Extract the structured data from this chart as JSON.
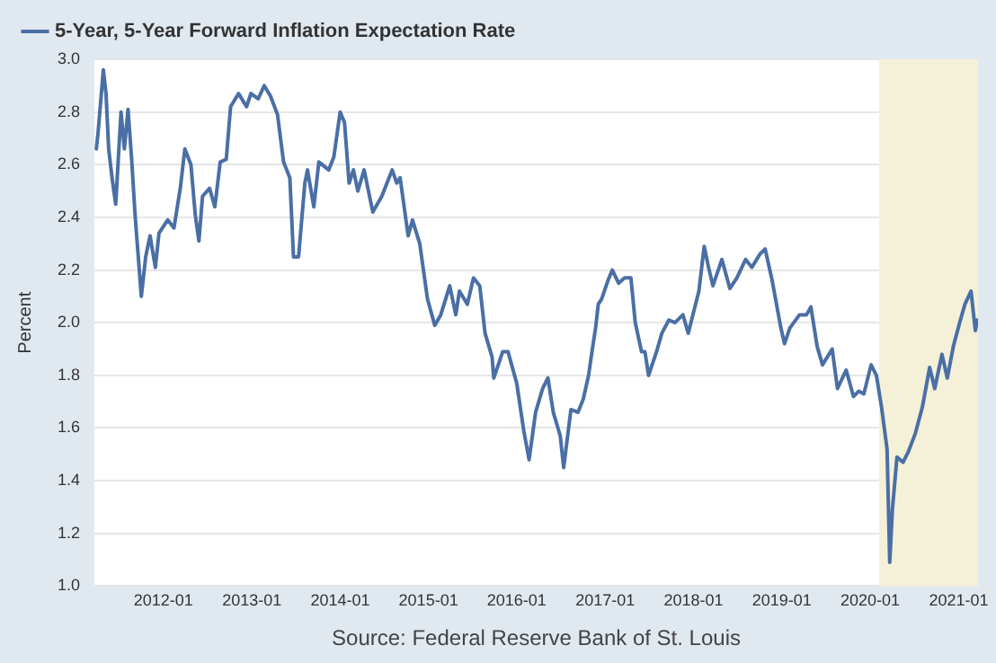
{
  "chart_data": {
    "type": "line",
    "ylabel": "Percent",
    "legend": "top left",
    "grid": "y",
    "marker": "none",
    "line_style": "solid",
    "annotations": [
      "Source: Federal Reserve Bank of St. Louis"
    ],
    "xlim": [
      "2011-03-22",
      "2021-03-22"
    ],
    "xticks": [
      "2012-01",
      "2013-01",
      "2014-01",
      "2015-01",
      "2016-01",
      "2017-01",
      "2018-01",
      "2019-01",
      "2020-01",
      "2021-01"
    ],
    "ylim": [
      1.0,
      3.0
    ],
    "yticks": [
      {
        "value": 1.0,
        "label": "1.0"
      },
      {
        "value": 1.2,
        "label": "1.2"
      },
      {
        "value": 1.4,
        "label": "1.4"
      },
      {
        "value": 1.6,
        "label": "1.6"
      },
      {
        "value": 1.8,
        "label": "1.8"
      },
      {
        "value": 2.0,
        "label": "2.0"
      },
      {
        "value": 2.2,
        "label": "2.2"
      },
      {
        "value": 2.4,
        "label": "2.4"
      },
      {
        "value": 2.6,
        "label": "2.6"
      },
      {
        "value": 2.8,
        "label": "2.8"
      },
      {
        "value": 3.0,
        "label": "3.0"
      }
    ],
    "bands": [
      {
        "axis": "x",
        "from": "2020-02-07",
        "to": "2021-03-22",
        "color": "#f4f1d8"
      }
    ],
    "series": [
      {
        "name": "5-Year, 5-Year Forward Inflation Expectation Rate",
        "color": "#4a6fa5",
        "x": [
          "2011-03-30",
          "2011-04-06",
          "2011-04-28",
          "2011-05-09",
          "2011-05-20",
          "2011-06-03",
          "2011-06-18",
          "2011-07-10",
          "2011-07-24",
          "2011-08-08",
          "2011-08-23",
          "2011-09-06",
          "2011-10-02",
          "2011-10-20",
          "2011-11-07",
          "2011-11-29",
          "2011-12-14",
          "2012-01-19",
          "2012-02-14",
          "2012-03-11",
          "2012-03-30",
          "2012-04-24",
          "2012-05-12",
          "2012-05-27",
          "2012-06-11",
          "2012-07-10",
          "2012-08-01",
          "2012-08-23",
          "2012-09-17",
          "2012-10-05",
          "2012-11-07",
          "2012-12-10",
          "2012-12-28",
          "2013-01-27",
          "2013-02-21",
          "2013-03-19",
          "2013-04-17",
          "2013-05-12",
          "2013-06-07",
          "2013-06-22",
          "2013-07-13",
          "2013-08-08",
          "2013-08-19",
          "2013-09-14",
          "2013-10-05",
          "2013-11-15",
          "2013-12-06",
          "2014-01-01",
          "2014-01-19",
          "2014-02-07",
          "2014-02-25",
          "2014-03-15",
          "2014-04-10",
          "2014-05-16",
          "2014-06-22",
          "2014-08-04",
          "2014-08-23",
          "2014-09-06",
          "2014-10-09",
          "2014-10-27",
          "2014-11-26",
          "2014-12-28",
          "2015-01-27",
          "2015-02-21",
          "2015-03-30",
          "2015-04-24",
          "2015-05-09",
          "2015-06-11",
          "2015-07-06",
          "2015-08-01",
          "2015-08-23",
          "2015-09-21",
          "2015-09-28",
          "2015-11-04",
          "2015-11-26",
          "2016-01-01",
          "2016-01-30",
          "2016-02-21",
          "2016-03-19",
          "2016-04-17",
          "2016-05-09",
          "2016-05-31",
          "2016-06-29",
          "2016-07-13",
          "2016-08-12",
          "2016-09-10",
          "2016-10-02",
          "2016-10-24",
          "2016-11-07",
          "2016-11-22",
          "2016-12-03",
          "2016-12-17",
          "2017-01-12",
          "2017-01-30",
          "2017-02-25",
          "2017-03-22",
          "2017-04-17",
          "2017-05-05",
          "2017-05-31",
          "2017-06-14",
          "2017-06-29",
          "2017-08-01",
          "2017-08-23",
          "2017-09-21",
          "2017-10-16",
          "2017-11-18",
          "2017-12-10",
          "2018-01-23",
          "2018-02-14",
          "2018-03-04",
          "2018-03-22",
          "2018-04-28",
          "2018-05-31",
          "2018-06-29",
          "2018-08-04",
          "2018-08-30",
          "2018-10-02",
          "2018-10-24",
          "2018-11-22",
          "2018-12-28",
          "2019-01-12",
          "2019-02-03",
          "2019-03-15",
          "2019-04-13",
          "2019-05-01",
          "2019-05-27",
          "2019-06-18",
          "2019-07-28",
          "2019-08-19",
          "2019-09-24",
          "2019-10-24",
          "2019-11-15",
          "2019-12-06",
          "2020-01-05",
          "2020-01-27",
          "2020-02-17",
          "2020-03-11",
          "2020-03-22",
          "2020-04-02",
          "2020-04-21",
          "2020-05-16",
          "2020-06-07",
          "2020-07-06",
          "2020-08-04",
          "2020-09-03",
          "2020-09-24",
          "2020-10-24",
          "2020-11-15",
          "2020-12-10",
          "2021-01-05",
          "2021-01-27",
          "2021-02-21",
          "2021-03-11",
          "2021-03-19"
        ],
        "values": [
          2.66,
          2.72,
          2.96,
          2.87,
          2.66,
          2.55,
          2.45,
          2.8,
          2.66,
          2.81,
          2.62,
          2.41,
          2.1,
          2.25,
          2.33,
          2.21,
          2.34,
          2.39,
          2.36,
          2.51,
          2.66,
          2.6,
          2.41,
          2.31,
          2.48,
          2.51,
          2.44,
          2.61,
          2.62,
          2.82,
          2.87,
          2.82,
          2.87,
          2.85,
          2.9,
          2.86,
          2.79,
          2.61,
          2.55,
          2.25,
          2.25,
          2.53,
          2.58,
          2.44,
          2.61,
          2.58,
          2.63,
          2.8,
          2.76,
          2.53,
          2.58,
          2.5,
          2.58,
          2.42,
          2.48,
          2.58,
          2.53,
          2.55,
          2.33,
          2.39,
          2.3,
          2.09,
          1.99,
          2.03,
          2.14,
          2.03,
          2.12,
          2.07,
          2.17,
          2.14,
          1.96,
          1.87,
          1.79,
          1.89,
          1.89,
          1.77,
          1.59,
          1.48,
          1.66,
          1.75,
          1.79,
          1.66,
          1.57,
          1.45,
          1.67,
          1.66,
          1.71,
          1.8,
          1.89,
          1.98,
          2.07,
          2.09,
          2.16,
          2.2,
          2.15,
          2.17,
          2.17,
          2.0,
          1.89,
          1.89,
          1.8,
          1.89,
          1.96,
          2.01,
          2.0,
          2.03,
          1.96,
          2.12,
          2.29,
          2.21,
          2.14,
          2.24,
          2.13,
          2.17,
          2.24,
          2.21,
          2.26,
          2.28,
          2.16,
          1.98,
          1.92,
          1.98,
          2.03,
          2.03,
          2.06,
          1.91,
          1.84,
          1.9,
          1.75,
          1.82,
          1.72,
          1.74,
          1.73,
          1.84,
          1.8,
          1.68,
          1.52,
          1.09,
          1.29,
          1.49,
          1.47,
          1.51,
          1.58,
          1.68,
          1.83,
          1.75,
          1.88,
          1.79,
          1.91,
          2.0,
          2.07,
          2.12,
          1.97,
          2.01
        ]
      }
    ]
  }
}
